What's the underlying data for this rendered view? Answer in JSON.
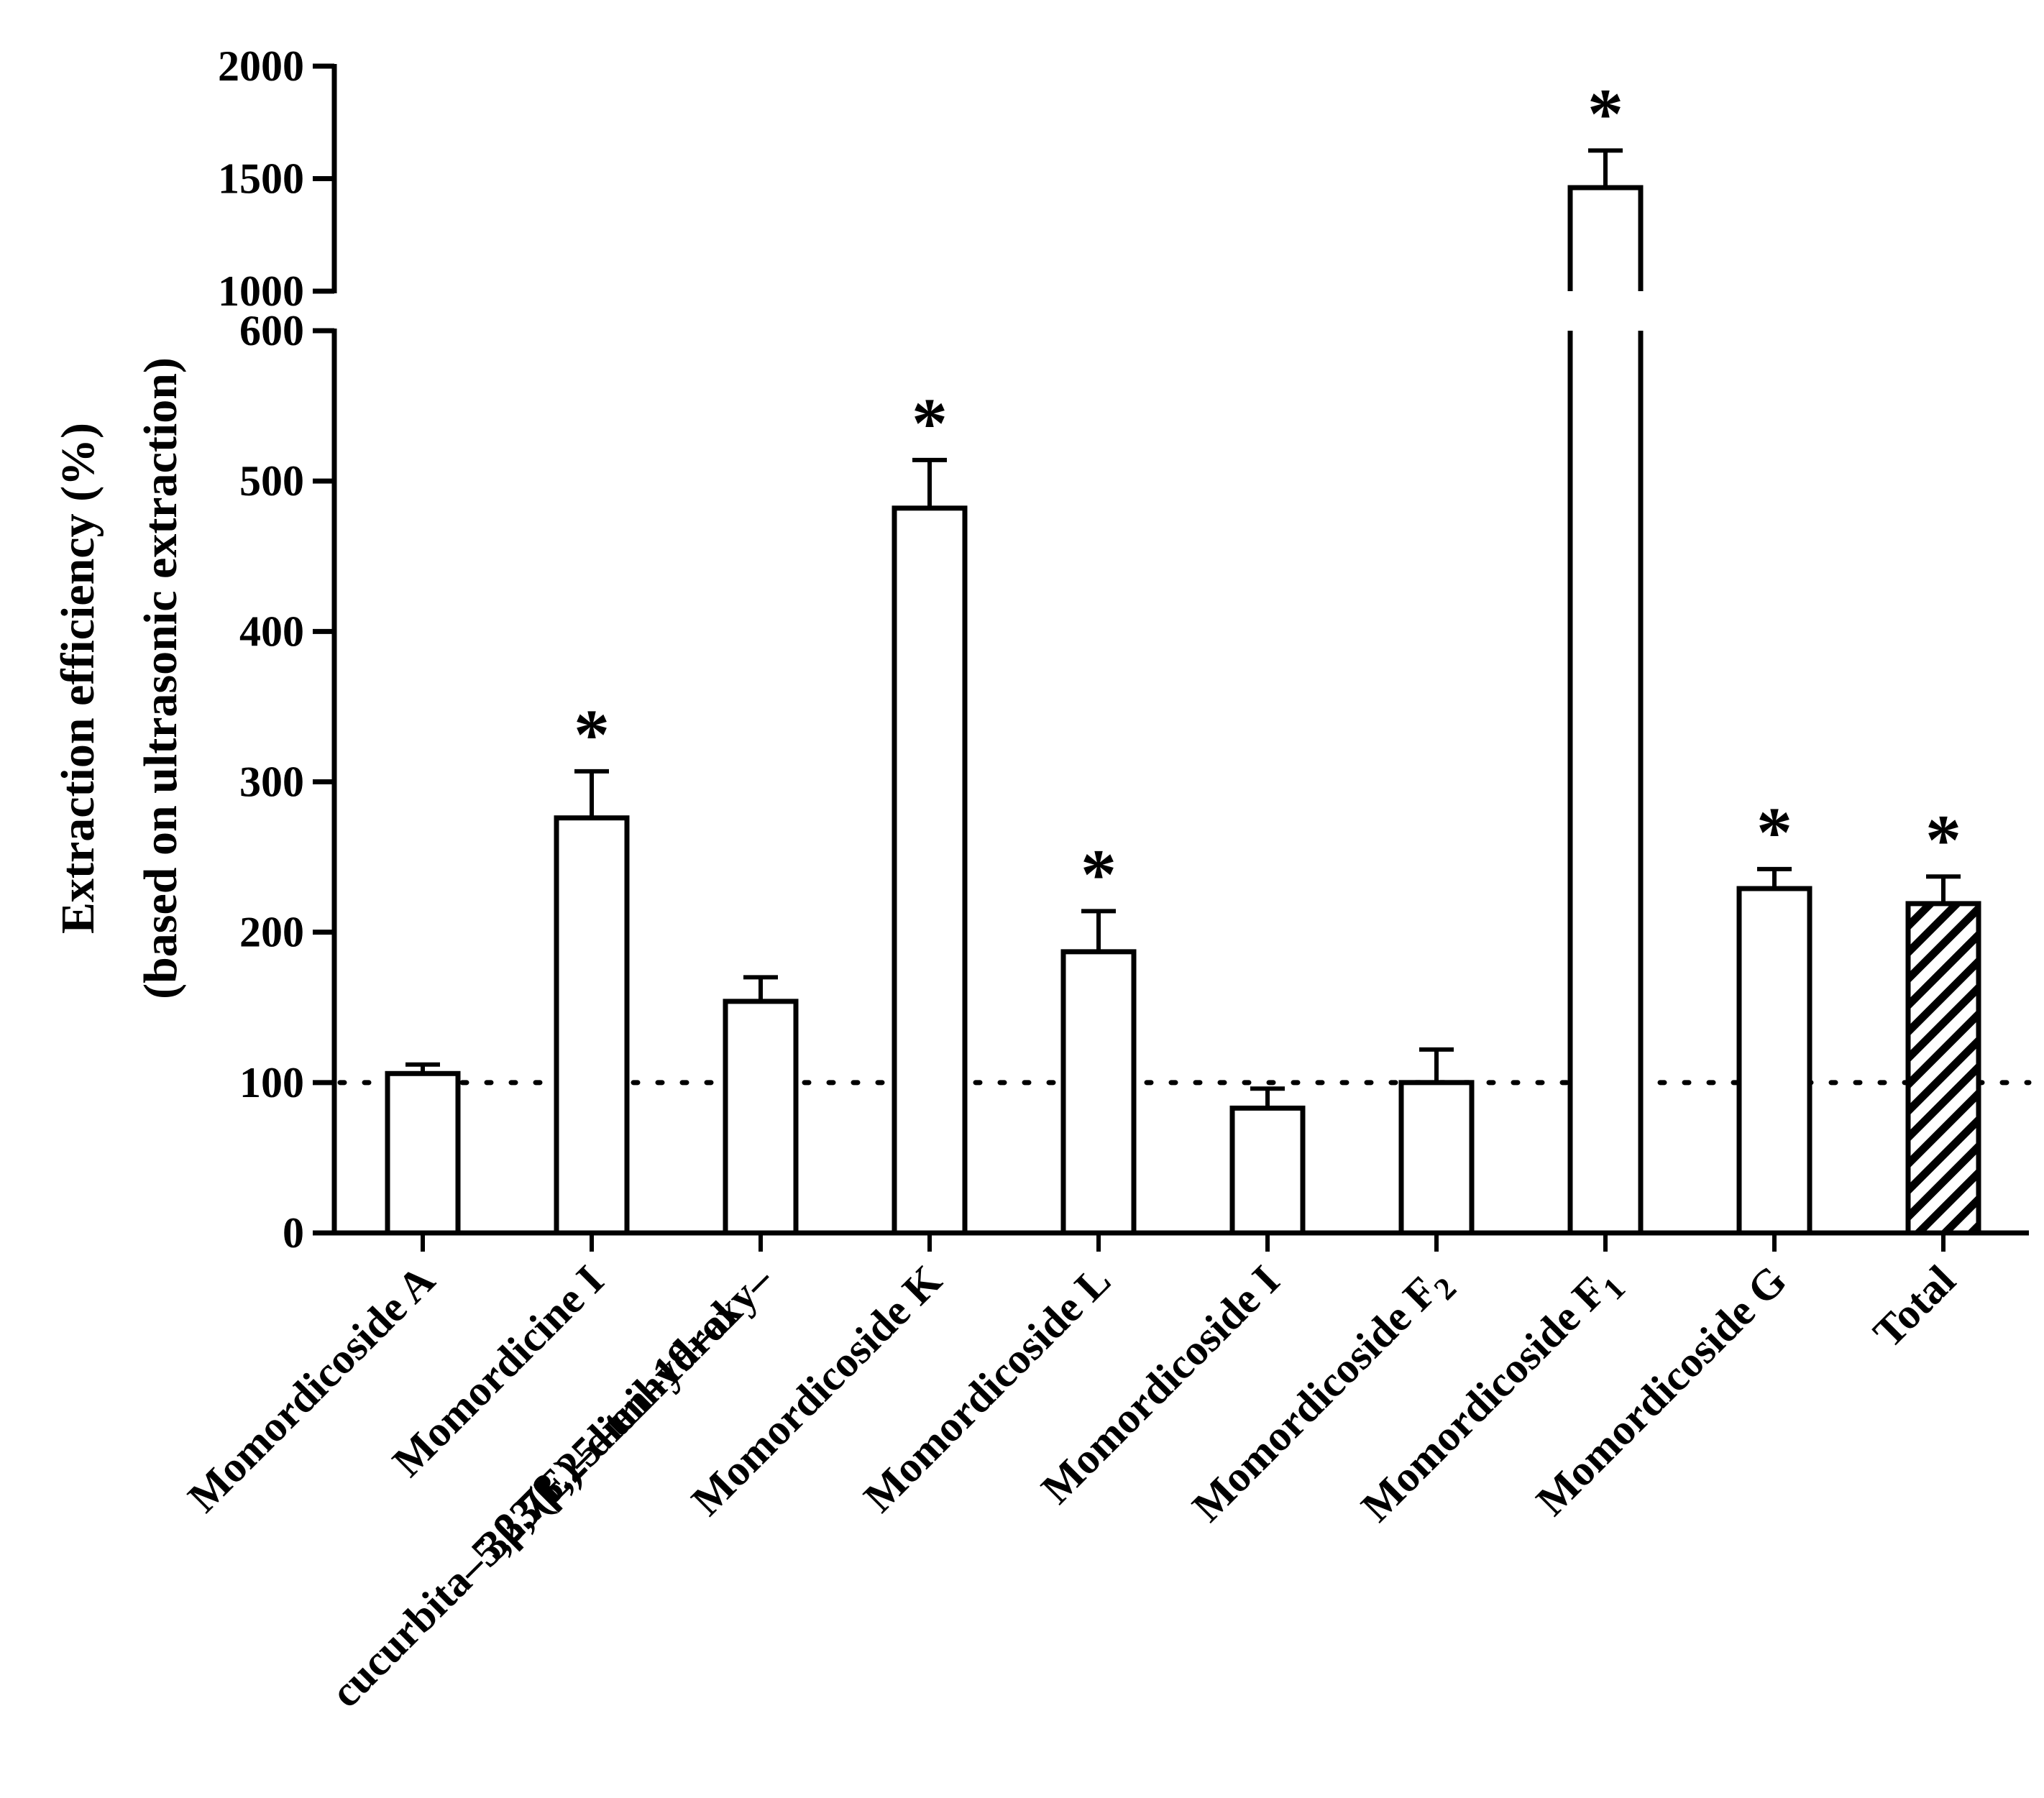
{
  "chart_data": {
    "type": "bar",
    "title": "",
    "xlabel": "",
    "ylabel": "Extraction efficiency (%)",
    "ylabel_line2": "(based on ultrasonic extraction)",
    "axis_break": {
      "lower_range": [
        0,
        600
      ],
      "upper_range": [
        1000,
        2000
      ]
    },
    "yticks_lower": [
      "0",
      "100",
      "200",
      "300",
      "400",
      "500",
      "600"
    ],
    "yticks_upper": [
      "1000",
      "1500",
      "2000"
    ],
    "reference_line": 100,
    "categories": [
      {
        "name": "Momordicoside A"
      },
      {
        "name": "Momordicine I"
      },
      {
        "name_line1": "3β,7β,25–trihydroxy–",
        "name_line2": "cucurbita–5,23(E)–dien–19–al"
      },
      {
        "name": "Momordicoside K"
      },
      {
        "name": "Momordicoside L"
      },
      {
        "name": "Momordicoside I"
      },
      {
        "name": "Momordicoside F",
        "subscript": "2"
      },
      {
        "name": "Momordicoside F",
        "subscript": "1"
      },
      {
        "name": "Momordicoside G"
      },
      {
        "name": "Total"
      }
    ],
    "values": [
      106,
      276,
      154,
      482,
      187,
      83,
      100,
      1460,
      229,
      219
    ],
    "errors": [
      6,
      31,
      16,
      32,
      27,
      13,
      22,
      165,
      13,
      18
    ],
    "significance": [
      "",
      "*",
      "",
      "*",
      "*",
      "",
      "",
      "*",
      "*",
      "*"
    ],
    "fill_patterns": [
      "open",
      "open",
      "open",
      "open",
      "open",
      "open",
      "open",
      "open",
      "open",
      "hatched"
    ],
    "colors": {
      "bar_fill": "#ffffff",
      "stroke": "#000000"
    }
  }
}
